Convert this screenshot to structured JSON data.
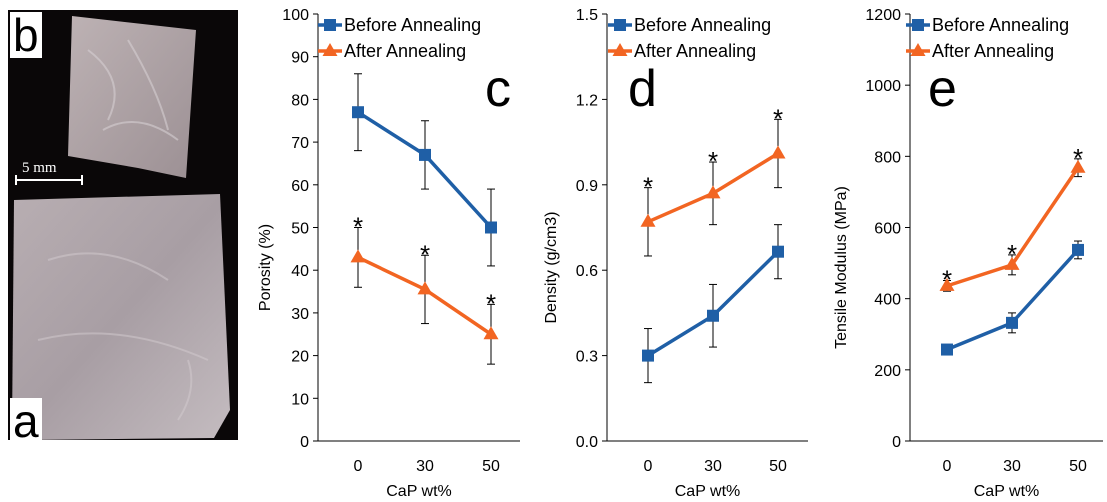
{
  "photo": {
    "label_top": "b",
    "label_bottom": "a",
    "scale_bar_label": "5 mm"
  },
  "chart_data": [
    {
      "type": "line",
      "panel_label": "c",
      "ylabel": "Porosity (%)",
      "xlabel": "CaP wt%",
      "categories": [
        "0",
        "30",
        "50"
      ],
      "ylim": [
        0,
        100
      ],
      "yticks": [
        0,
        10,
        20,
        30,
        40,
        50,
        60,
        70,
        80,
        90,
        100
      ],
      "y_tick_decimals": 0,
      "legend_position": "top-left",
      "series": [
        {
          "name": "Before Annealing",
          "color": "#1F5FA6",
          "marker": "square",
          "values": [
            77,
            67,
            50
          ],
          "errors": [
            9,
            8,
            9
          ],
          "significant": [
            false,
            false,
            false
          ]
        },
        {
          "name": "After Annealing",
          "color": "#F26522",
          "marker": "triangle",
          "values": [
            43,
            35.5,
            25
          ],
          "errors": [
            7,
            8,
            7
          ],
          "significant": [
            true,
            true,
            true
          ]
        }
      ],
      "significance_marker": "*"
    },
    {
      "type": "line",
      "panel_label": "d",
      "ylabel": "Density (g/cm3)",
      "xlabel": "CaP wt%",
      "categories": [
        "0",
        "30",
        "50"
      ],
      "ylim": [
        0,
        1.5
      ],
      "yticks": [
        0,
        0.3,
        0.6,
        0.9,
        1.2,
        1.5
      ],
      "y_tick_decimals": 1,
      "legend_position": "top-left",
      "series": [
        {
          "name": "Before Annealing",
          "color": "#1F5FA6",
          "marker": "square",
          "values": [
            0.3,
            0.44,
            0.665
          ],
          "errors": [
            0.095,
            0.11,
            0.095
          ],
          "significant": [
            false,
            false,
            false
          ]
        },
        {
          "name": "After Annealing",
          "color": "#F26522",
          "marker": "triangle",
          "values": [
            0.77,
            0.87,
            1.01
          ],
          "errors": [
            0.12,
            0.11,
            0.12
          ],
          "significant": [
            true,
            true,
            true
          ]
        }
      ],
      "significance_marker": "*"
    },
    {
      "type": "line",
      "panel_label": "e",
      "ylabel": "Tensile Modulus (MPa)",
      "xlabel": "CaP wt%",
      "categories": [
        "0",
        "30",
        "50"
      ],
      "ylim": [
        0,
        1200
      ],
      "yticks": [
        0,
        200,
        400,
        600,
        800,
        1000,
        1200
      ],
      "y_tick_decimals": 0,
      "legend_position": "top-left",
      "series": [
        {
          "name": "Before Annealing",
          "color": "#1F5FA6",
          "marker": "square",
          "values": [
            257,
            332,
            537
          ],
          "errors": [
            12,
            28,
            25
          ],
          "significant": [
            false,
            false,
            false
          ]
        },
        {
          "name": "After Annealing",
          "color": "#F26522",
          "marker": "triangle",
          "values": [
            436,
            495,
            768
          ],
          "errors": [
            15,
            28,
            25
          ],
          "significant": [
            true,
            true,
            true
          ]
        }
      ],
      "significance_marker": "*"
    }
  ]
}
